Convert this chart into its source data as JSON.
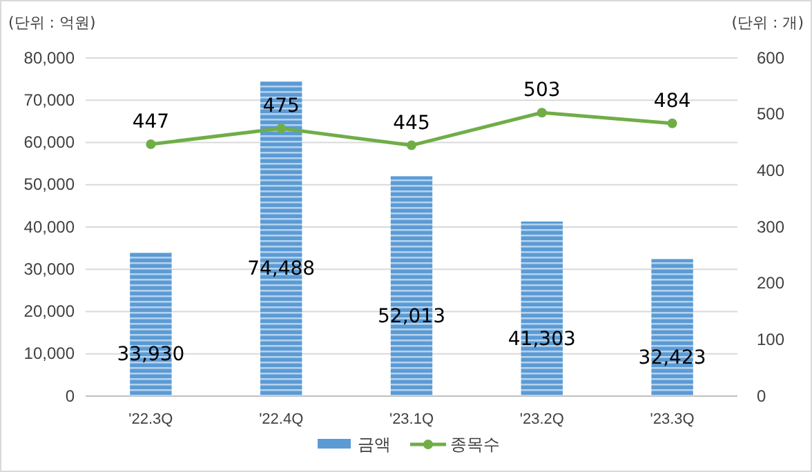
{
  "chart_data": {
    "type": "bar",
    "categories": [
      "'22.3Q",
      "'22.4Q",
      "'23.1Q",
      "'23.2Q",
      "'23.3Q"
    ],
    "ylabel": "(단위 : 억원)",
    "y2label": "(단위 : 개)",
    "ylim": [
      0,
      80000
    ],
    "yticks": [
      {
        "value": 0,
        "label": "0"
      },
      {
        "value": 10000,
        "label": "10,000"
      },
      {
        "value": 20000,
        "label": "20,000"
      },
      {
        "value": 30000,
        "label": "30,000"
      },
      {
        "value": 40000,
        "label": "40,000"
      },
      {
        "value": 50000,
        "label": "50,000"
      },
      {
        "value": 60000,
        "label": "60,000"
      },
      {
        "value": 70000,
        "label": "70,000"
      },
      {
        "value": 80000,
        "label": "80,000"
      }
    ],
    "y2lim": [
      0,
      600
    ],
    "y2ticks": [
      0,
      100,
      200,
      300,
      400,
      500,
      600
    ],
    "series": [
      {
        "name": "금액",
        "color": "#5b9bd5",
        "values": [
          33930,
          74488,
          52013,
          41303,
          32423
        ],
        "value_labels": [
          "33,930",
          "74,488",
          "52,013",
          "41,303",
          "32,423"
        ]
      },
      {
        "name": "종목수",
        "type": "line",
        "axis": "y2",
        "color": "#70ad47",
        "values": [
          447,
          475,
          445,
          503,
          484
        ]
      }
    ],
    "data_labels": true,
    "grid": "y",
    "legend": "bottom",
    "marker": "circle",
    "line_style": "solid"
  }
}
